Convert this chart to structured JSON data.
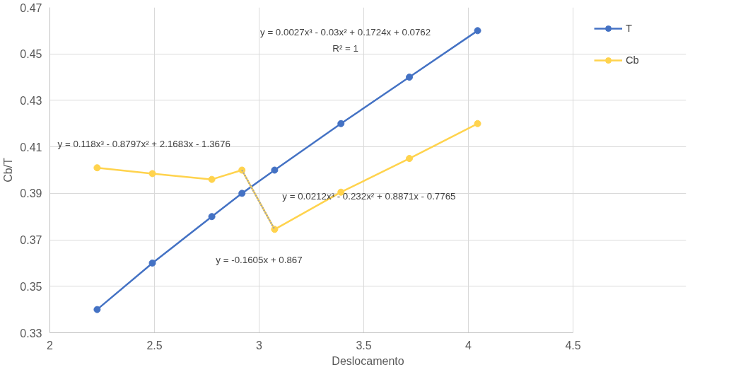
{
  "chart_data": {
    "type": "line",
    "xlabel": "Deslocamento",
    "ylabel": "Cb/T",
    "xlim": [
      2,
      4.5
    ],
    "xticks": [
      2,
      2.5,
      3,
      3.5,
      4,
      4.5
    ],
    "ylim": [
      0.33,
      0.47
    ],
    "yticks": [
      0.33,
      0.35,
      0.37,
      0.39,
      0.41,
      0.43,
      0.45,
      0.47
    ],
    "grid": true,
    "legend": "top right",
    "marker": "circle",
    "line_style": "solid",
    "x": [
      2.226,
      2.49,
      2.774,
      2.918,
      3.074,
      3.391,
      3.718,
      4.044
    ],
    "series": [
      {
        "name": "T",
        "color": "#4472c4",
        "values": [
          0.34,
          0.36,
          0.38,
          0.39,
          0.4,
          0.42,
          0.44,
          0.46
        ]
      },
      {
        "name": "Cb",
        "color": "#ffd34d",
        "values": [
          0.401,
          0.3985,
          0.396,
          0.4,
          0.3745,
          0.3905,
          0.405,
          0.42
        ]
      },
      {
        "type": "line",
        "color": "#a5a5a5",
        "line_style": "dotted",
        "marker": "none",
        "x": [
          2.918,
          3.074
        ],
        "values": [
          0.4,
          0.3745
        ]
      }
    ],
    "annotations": [
      "y = 0.0027x³ - 0.03x² + 0.1724x + 0.0762",
      "R² = 1",
      "y = 0.118x³ - 0.8797x² + 2.1683x - 1.3676",
      "y = 0.0212x³ - 0.232x² + 0.8871x - 0.7765",
      "y = -0.1605x + 0.867"
    ]
  }
}
